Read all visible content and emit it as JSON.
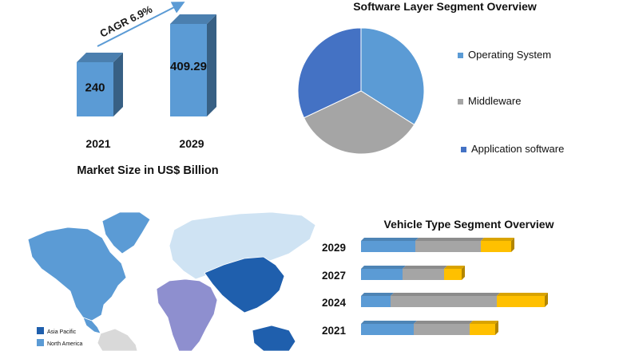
{
  "chart_data": [
    {
      "type": "bar",
      "title": "Market Size in US$ Billion",
      "categories": [
        "2021",
        "2029"
      ],
      "values": [
        240,
        409.29
      ],
      "value_labels": [
        "240",
        "409.29"
      ],
      "annotation": "CAGR 6.9%",
      "color": "#5b9bd5",
      "grid": false
    },
    {
      "type": "pie",
      "title": "Software Layer Segment Overview",
      "labels": [
        "Operating System",
        "Middleware",
        "Application software"
      ],
      "values": [
        34,
        34,
        32
      ],
      "colors": [
        "#5b9bd5",
        "#a5a5a5",
        "#4472c4"
      ],
      "legend_position": "right"
    },
    {
      "type": "bar",
      "orientation": "horizontal",
      "stacked": true,
      "title": "Vehicle Type Segment Overview",
      "categories": [
        "2029",
        "2027",
        "2024",
        "2021"
      ],
      "series": [
        {
          "values": [
            68,
            52,
            37,
            66
          ],
          "color": "#5b9bd5"
        },
        {
          "values": [
            82,
            52,
            133,
            70
          ],
          "color": "#a5a5a5"
        },
        {
          "values": [
            38,
            22,
            60,
            32
          ],
          "color": "#ffc000"
        }
      ],
      "grid": false
    }
  ],
  "map": {
    "legend": [
      {
        "label": "Asia Pacific",
        "color": "#1f5fad"
      },
      {
        "label": "North America",
        "color": "#5b9bd5"
      }
    ],
    "colors": {
      "north_america": "#5b9bd5",
      "europe": "#cfe3f3",
      "asia_pacific": "#1f5fad",
      "mea": "#8e8fcf",
      "south_america": "#d9d9d9",
      "ocean": "#ffffff"
    }
  }
}
